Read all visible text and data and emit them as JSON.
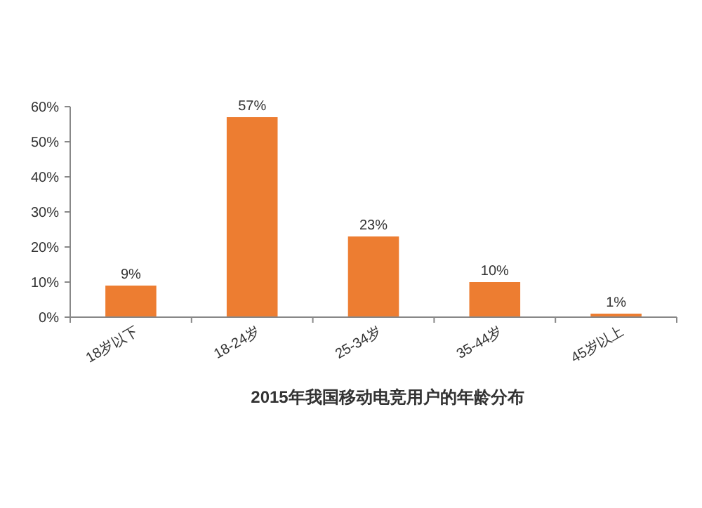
{
  "chart_data": {
    "type": "bar",
    "title": "2015年我国移动电竞用户的年龄分布",
    "categories": [
      "18岁以下",
      "18-24岁",
      "25-34岁",
      "35-44岁",
      "45岁以上"
    ],
    "values": [
      9,
      57,
      23,
      10,
      1
    ],
    "value_labels": [
      "9%",
      "57%",
      "23%",
      "10%",
      "1%"
    ],
    "color": "#ed7d31",
    "ylim": [
      0,
      60
    ],
    "yticks": [
      {
        "value": 0,
        "label": "0%"
      },
      {
        "value": 10,
        "label": "10%"
      },
      {
        "value": 20,
        "label": "20%"
      },
      {
        "value": 30,
        "label": "30%"
      },
      {
        "value": 40,
        "label": "40%"
      },
      {
        "value": 50,
        "label": "50%"
      },
      {
        "value": 60,
        "label": "60%"
      }
    ],
    "grid": false
  }
}
